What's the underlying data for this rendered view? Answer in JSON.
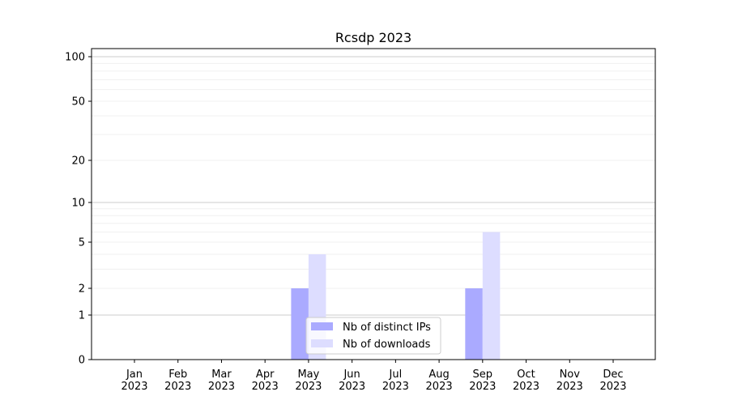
{
  "chart_data": {
    "type": "bar",
    "title": "Rcsdp 2023",
    "xlabel": "",
    "ylabel": "",
    "yscale": "symlog",
    "ylim": [
      0,
      110
    ],
    "yticks": [
      0,
      1,
      2,
      5,
      10,
      20,
      50,
      100
    ],
    "categories": [
      "Jan\n2023",
      "Feb\n2023",
      "Mar\n2023",
      "Apr\n2023",
      "May\n2023",
      "Jun\n2023",
      "Jul\n2023",
      "Aug\n2023",
      "Sep\n2023",
      "Oct\n2023",
      "Nov\n2023",
      "Dec\n2023"
    ],
    "series": [
      {
        "name": "Nb of distinct IPs",
        "color": "#aaaaff",
        "values": [
          0,
          0,
          0,
          0,
          2,
          0,
          0,
          0,
          2,
          0,
          0,
          0
        ]
      },
      {
        "name": "Nb of downloads",
        "color": "#ddddff",
        "values": [
          0,
          0,
          0,
          0,
          4,
          0,
          0,
          0,
          6,
          0,
          0,
          0
        ]
      }
    ],
    "grid": true,
    "legend_position": "bottom-center"
  }
}
